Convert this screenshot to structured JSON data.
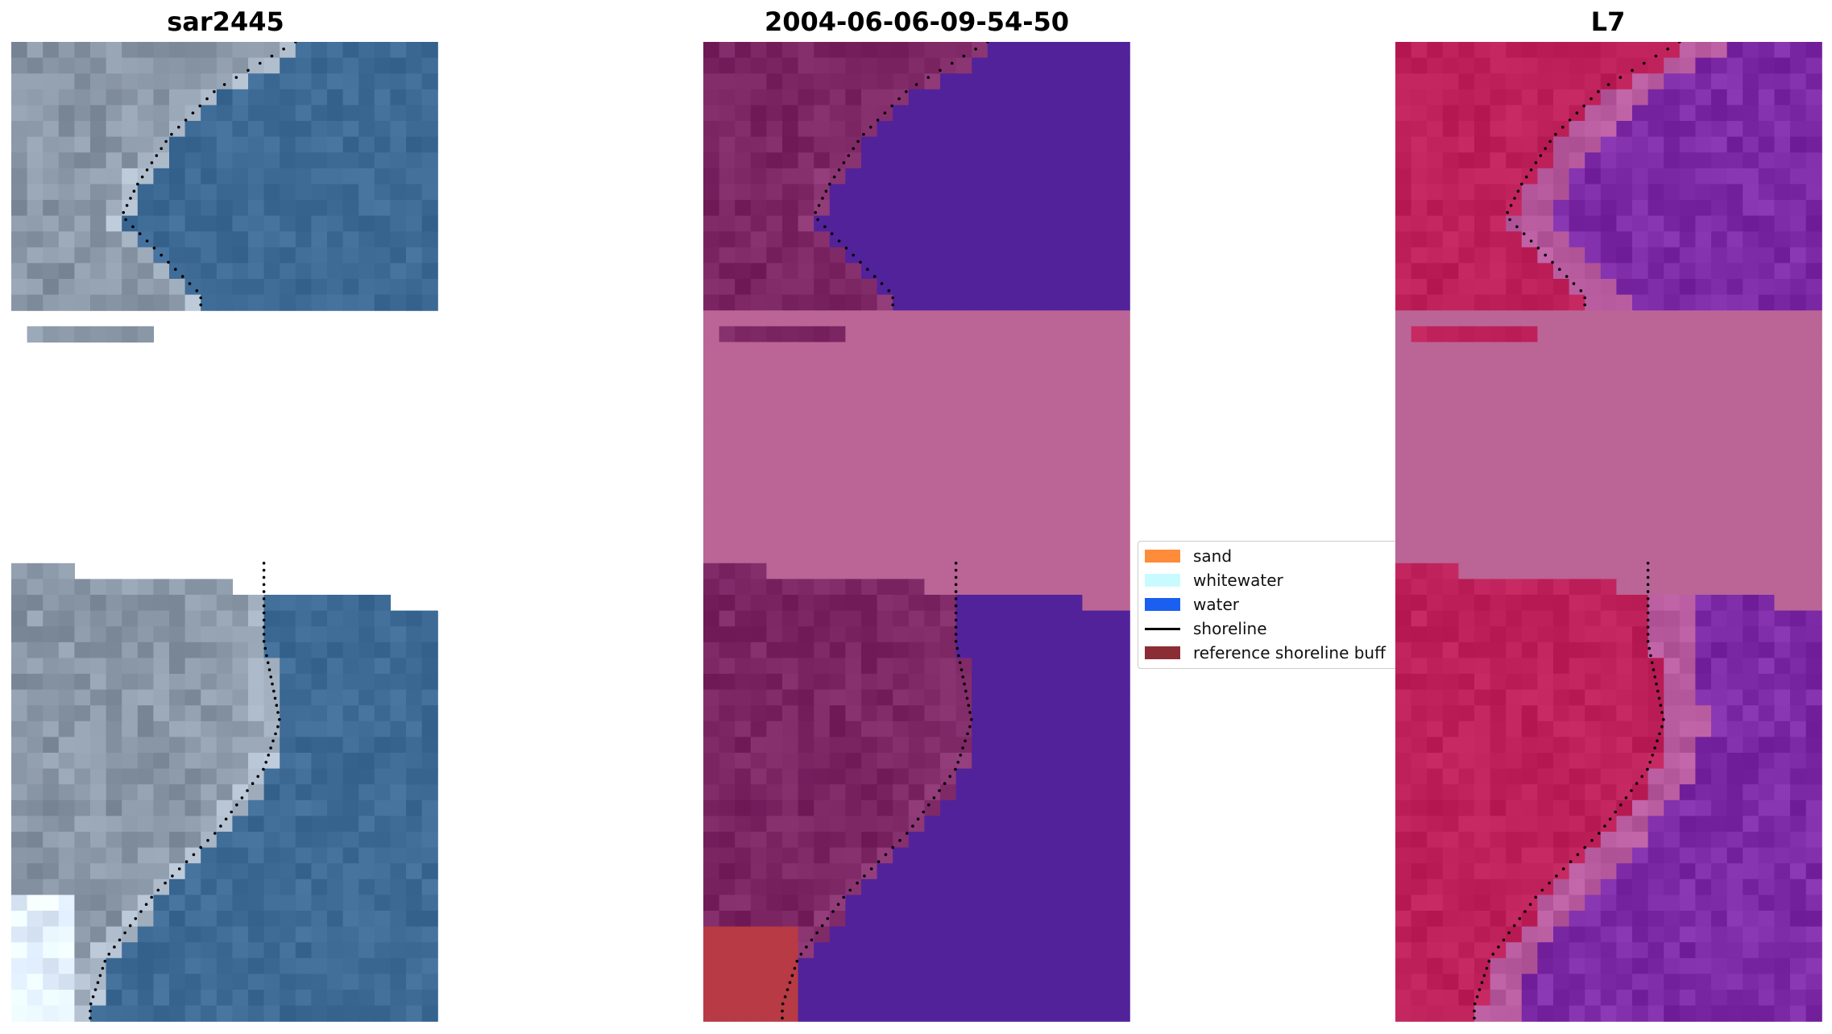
{
  "titles": {
    "left": "sar2445",
    "middle": "2004-06-06-09-54-50",
    "right": "L7"
  },
  "legend": {
    "items": [
      {
        "label": "sand",
        "color": "#ff8c3a",
        "kind": "patch"
      },
      {
        "label": "whitewater",
        "color": "#c8fbff",
        "kind": "patch"
      },
      {
        "label": "water",
        "color": "#1a5ff0",
        "kind": "patch"
      },
      {
        "label": "shoreline",
        "color": "#000000",
        "kind": "line"
      },
      {
        "label": "reference shoreline buff",
        "color": "#8b2d35",
        "kind": "patch"
      }
    ]
  },
  "colors": {
    "nodata": "#ffffff",
    "left_water": "#3d6b96",
    "left_land": "#8a97a6",
    "middle_water": "#52229a",
    "middle_land": "#7c2563",
    "middle_nodata_band": "#ba6596",
    "middle_sand_patch": "#b73a44",
    "right_water": "#7c2aa6",
    "right_land": "#be2159",
    "right_nodata_band": "#ba6596"
  }
}
